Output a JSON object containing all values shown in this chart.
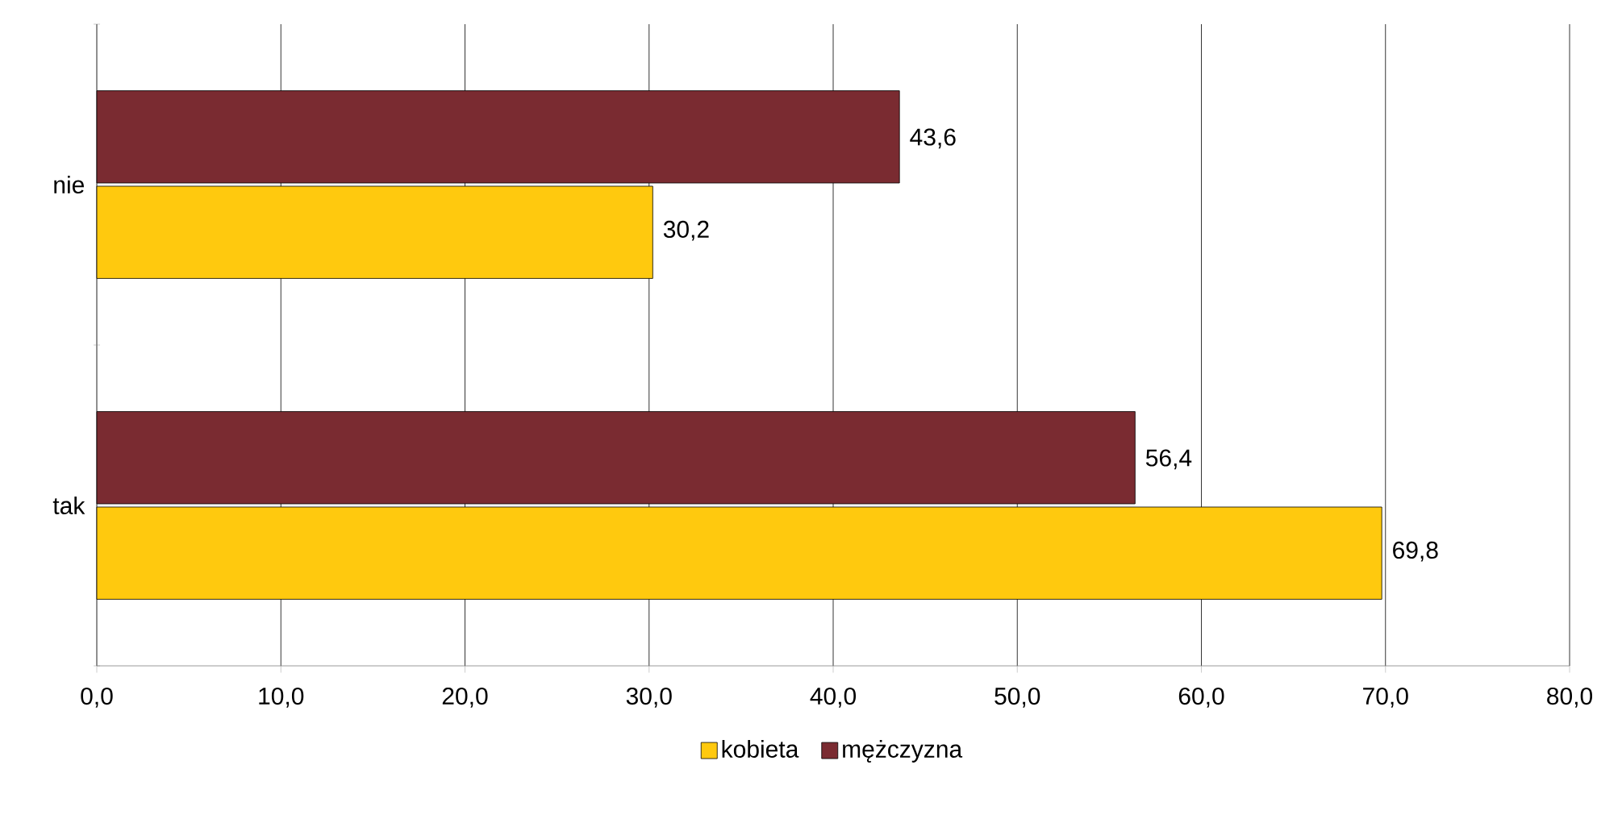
{
  "chart_data": {
    "type": "bar",
    "orientation": "horizontal",
    "categories": [
      "nie",
      "tak"
    ],
    "series": [
      {
        "name": "kobieta",
        "color": "#ffc90e",
        "values": [
          30.2,
          69.8
        ],
        "value_labels": [
          "30,2",
          "69,8"
        ]
      },
      {
        "name": "mężczyzna",
        "color": "#7a2b31",
        "values": [
          43.6,
          56.4
        ],
        "value_labels": [
          "43,6",
          "56,4"
        ]
      }
    ],
    "xlim": [
      0,
      80
    ],
    "xticks": [
      {
        "value": 0,
        "label": "0,0"
      },
      {
        "value": 10,
        "label": "10,0"
      },
      {
        "value": 20,
        "label": "20,0"
      },
      {
        "value": 30,
        "label": "30,0"
      },
      {
        "value": 40,
        "label": "40,0"
      },
      {
        "value": 50,
        "label": "50,0"
      },
      {
        "value": 60,
        "label": "60,0"
      },
      {
        "value": 70,
        "label": "70,0"
      },
      {
        "value": 80,
        "label": "80,0"
      }
    ],
    "grid": "x",
    "legend": "bottom"
  }
}
